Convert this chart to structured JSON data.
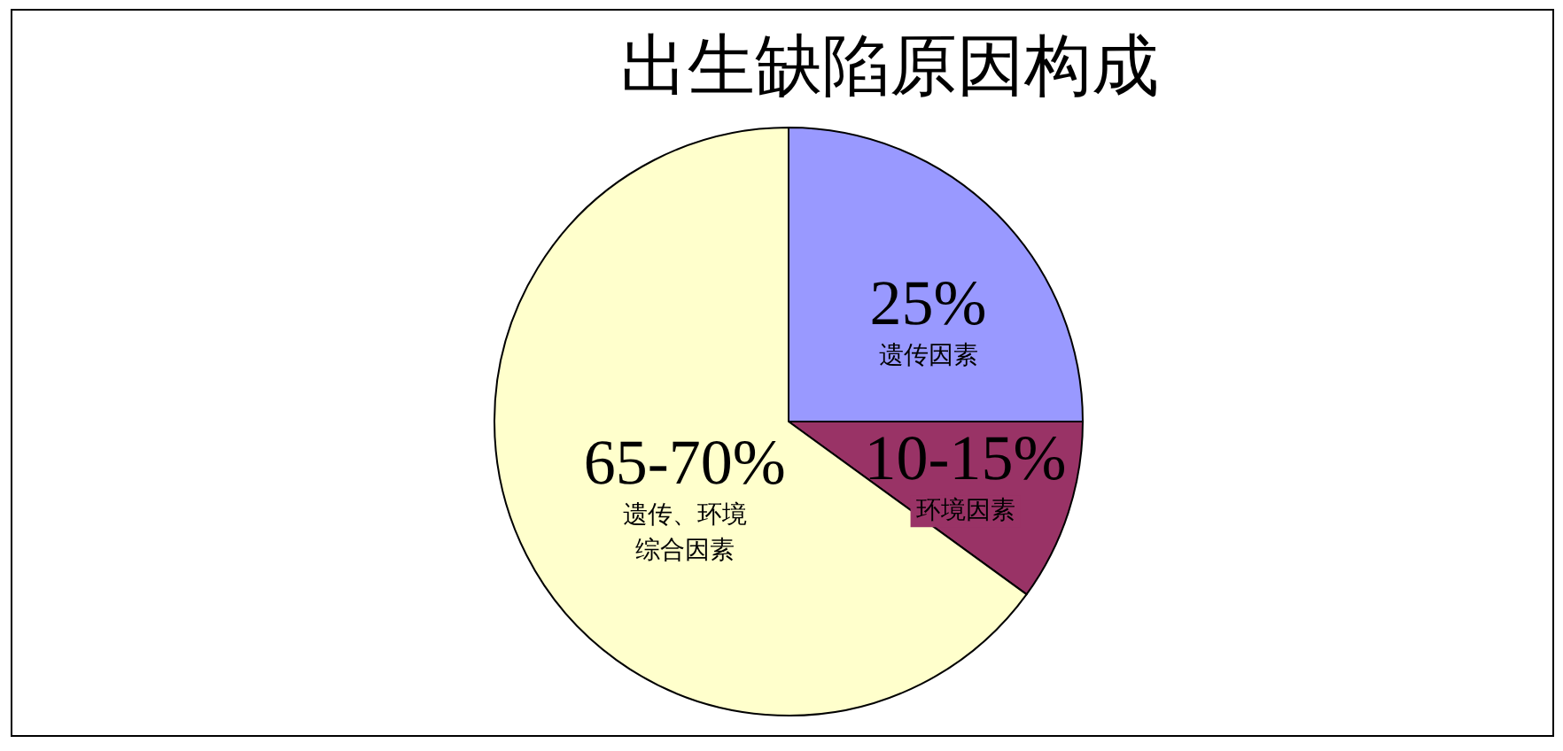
{
  "chart_data": {
    "type": "pie",
    "title": "出生缺陷原因构成",
    "categories": [
      "遗传因素",
      "环境因素",
      "遗传、环境综合因素"
    ],
    "values": [
      25,
      10,
      65
    ],
    "colors": [
      "#9999ff",
      "#993366",
      "#ffffcc"
    ],
    "value_labels": [
      "25%",
      "10-15%",
      "65-70%"
    ],
    "legend": false
  }
}
